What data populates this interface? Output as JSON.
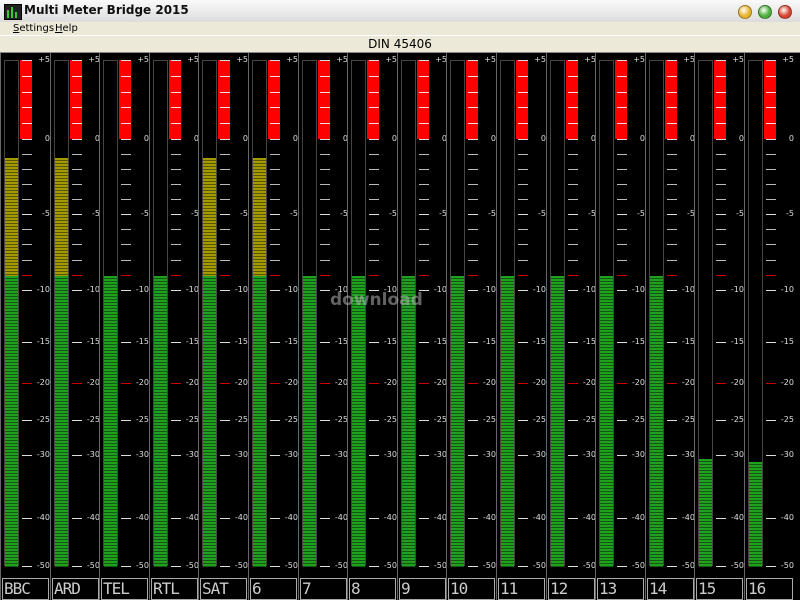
{
  "window": {
    "title": "Multi Meter Bridge 2015",
    "controls": [
      {
        "name": "minimize-button",
        "color": "#e8b32a"
      },
      {
        "name": "maximize-button",
        "color": "#4caf3c"
      },
      {
        "name": "close-button",
        "color": "#d9432f"
      }
    ]
  },
  "menu": {
    "items": [
      {
        "label": "Settings",
        "accel": "S",
        "rest": "ettings"
      },
      {
        "label": "Help",
        "accel": "H",
        "rest": "elp"
      }
    ]
  },
  "header": {
    "title": "DIN 45406"
  },
  "scale": {
    "min": -50,
    "max": 5,
    "labels": [
      {
        "v": 5,
        "t": "+5"
      },
      {
        "v": 0,
        "t": "0"
      },
      {
        "v": -5,
        "t": "-5"
      },
      {
        "v": -10,
        "t": "-10"
      },
      {
        "v": -15,
        "t": "-15"
      },
      {
        "v": -20,
        "t": "-20"
      },
      {
        "v": -25,
        "t": "-25"
      },
      {
        "v": -30,
        "t": "-30"
      },
      {
        "v": -40,
        "t": "-40"
      },
      {
        "v": -50,
        "t": "-50"
      }
    ],
    "minor": [
      4,
      3,
      2,
      1,
      -1,
      -2,
      -3,
      -4,
      -6,
      -7,
      -8,
      -9
    ],
    "red_marks": [
      -9,
      -20
    ],
    "red_zone": [
      0,
      5
    ]
  },
  "colors": {
    "green": "#1fa01f",
    "yellow": "#a39a00",
    "darkred": "#8c0000",
    "red": "#ff0000",
    "tick": "#bbbbbb"
  },
  "watermark": "download",
  "channels": [
    {
      "label": "BBC",
      "level": -1.2
    },
    {
      "label": "ARD",
      "level": -1.2
    },
    {
      "label": "TEL",
      "level": -9
    },
    {
      "label": "RTL",
      "level": -9
    },
    {
      "label": "SAT",
      "level": -1.2
    },
    {
      "label": "6",
      "level": -1.2
    },
    {
      "label": "7",
      "level": -9
    },
    {
      "label": "8",
      "level": -9
    },
    {
      "label": "9",
      "level": -9
    },
    {
      "label": "10",
      "level": -9
    },
    {
      "label": "11",
      "level": -9
    },
    {
      "label": "12",
      "level": -9
    },
    {
      "label": "13",
      "level": -9
    },
    {
      "label": "14",
      "level": -9
    },
    {
      "label": "15",
      "level": -30.5
    },
    {
      "label": "16",
      "level": -31
    }
  ]
}
